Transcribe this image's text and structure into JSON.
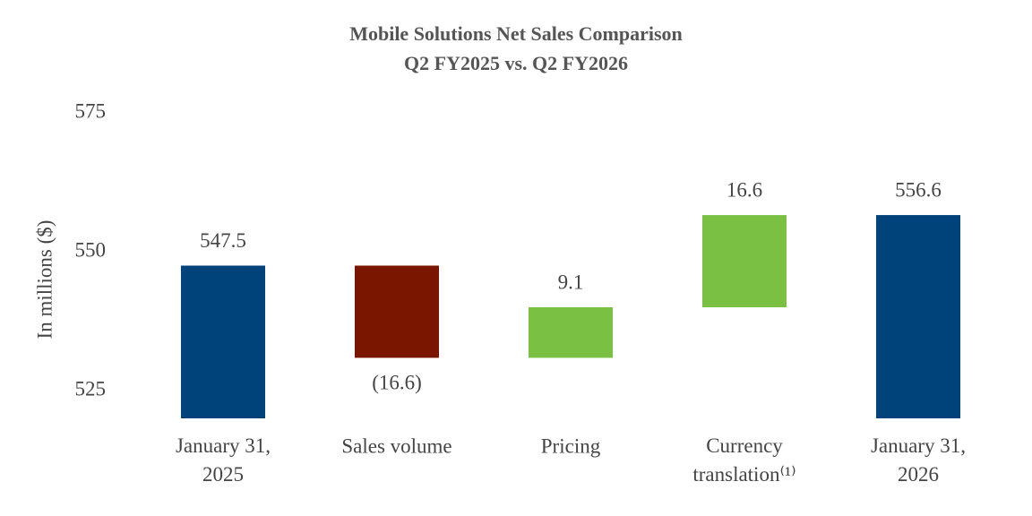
{
  "chart_data": {
    "type": "waterfall",
    "title": "Mobile Solutions Net Sales Comparison",
    "subtitle": "Q2 FY2025 vs. Q2 FY2026",
    "y_label": "In millions ($)",
    "categories": [
      "January 31, 2025",
      "Sales volume",
      "Pricing",
      "Currency translation⁽¹⁾",
      "January 31, 2026"
    ],
    "values": [
      547.5,
      -16.6,
      9.1,
      16.6,
      556.6
    ],
    "value_labels": [
      "547.5",
      "(16.6)",
      "9.1",
      "16.6",
      "556.6"
    ],
    "measures": [
      "total",
      "relative",
      "relative",
      "relative",
      "total"
    ],
    "colors": [
      "#00427a",
      "#7a1600",
      "#7ac143",
      "#7ac143",
      "#00427a"
    ],
    "ylim": [
      520,
      575
    ],
    "yticks": [
      525,
      550,
      575
    ],
    "grid": false
  }
}
